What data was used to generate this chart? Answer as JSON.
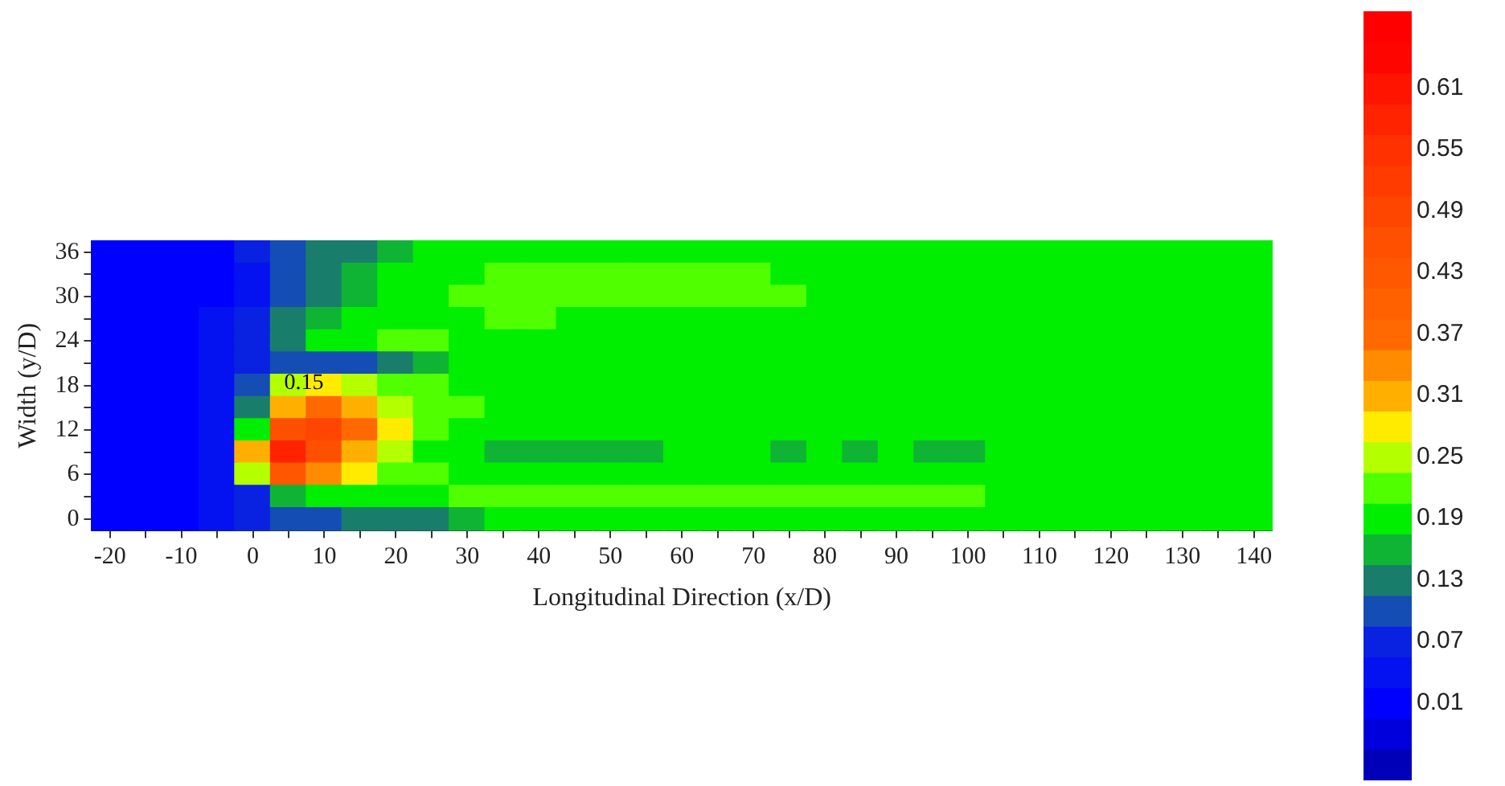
{
  "chart_data": {
    "type": "heatmap",
    "xlabel": "Longitudinal Direction (x/D)",
    "ylabel": "Width (y/D)",
    "categories": [
      "-20",
      null,
      "-10",
      null,
      "0",
      null,
      "10",
      null,
      "20",
      null,
      "30",
      null,
      "40",
      null,
      "50",
      null,
      "60",
      null,
      "70",
      null,
      "80",
      null,
      "90",
      null,
      "100",
      null,
      "110",
      null,
      "120",
      null,
      "130",
      null,
      "140"
    ],
    "y_categories": [
      "36",
      null,
      "30",
      null,
      "24",
      null,
      "18",
      null,
      "12",
      null,
      "6",
      null,
      "0"
    ],
    "cells": [
      [
        0.01,
        0.01,
        0.01,
        0.01,
        0.07,
        0.1,
        0.13,
        0.13,
        0.16,
        0.19,
        0.19,
        0.19,
        0.19,
        0.19,
        0.19,
        0.19,
        0.19,
        0.19,
        0.19,
        0.19,
        0.19,
        0.19,
        0.19,
        0.19,
        0.19,
        0.19,
        0.19,
        0.19,
        0.19,
        0.19,
        0.19,
        0.19,
        0.19
      ],
      [
        0.01,
        0.01,
        0.01,
        0.01,
        0.04,
        0.1,
        0.13,
        0.16,
        0.19,
        0.19,
        0.19,
        0.22,
        0.22,
        0.22,
        0.22,
        0.22,
        0.22,
        0.22,
        0.22,
        0.19,
        0.19,
        0.19,
        0.19,
        0.19,
        0.19,
        0.19,
        0.19,
        0.19,
        0.19,
        0.19,
        0.19,
        0.19,
        0.19
      ],
      [
        0.01,
        0.01,
        0.01,
        0.01,
        0.04,
        0.1,
        0.13,
        0.16,
        0.19,
        0.19,
        0.22,
        0.22,
        0.22,
        0.22,
        0.22,
        0.22,
        0.22,
        0.22,
        0.22,
        0.22,
        0.19,
        0.19,
        0.19,
        0.19,
        0.19,
        0.19,
        0.19,
        0.19,
        0.19,
        0.19,
        0.19,
        0.19,
        0.19
      ],
      [
        0.01,
        0.01,
        0.01,
        0.04,
        0.07,
        0.13,
        0.16,
        0.19,
        0.19,
        0.19,
        0.19,
        0.22,
        0.22,
        0.19,
        0.19,
        0.19,
        0.19,
        0.19,
        0.19,
        0.19,
        0.19,
        0.19,
        0.19,
        0.19,
        0.19,
        0.19,
        0.19,
        0.19,
        0.19,
        0.19,
        0.19,
        0.19,
        0.19
      ],
      [
        0.01,
        0.01,
        0.01,
        0.04,
        0.07,
        0.13,
        0.19,
        0.19,
        0.22,
        0.22,
        0.19,
        0.19,
        0.19,
        0.19,
        0.19,
        0.19,
        0.19,
        0.19,
        0.19,
        0.19,
        0.19,
        0.19,
        0.19,
        0.19,
        0.19,
        0.19,
        0.19,
        0.19,
        0.19,
        0.19,
        0.19,
        0.19,
        0.19
      ],
      [
        0.01,
        0.01,
        0.01,
        0.04,
        0.07,
        0.1,
        0.1,
        0.1,
        0.13,
        0.16,
        0.19,
        0.19,
        0.19,
        0.19,
        0.19,
        0.19,
        0.19,
        0.19,
        0.19,
        0.19,
        0.19,
        0.19,
        0.19,
        0.19,
        0.19,
        0.19,
        0.19,
        0.19,
        0.19,
        0.19,
        0.19,
        0.19,
        0.19
      ],
      [
        0.01,
        0.01,
        0.01,
        0.04,
        0.1,
        0.25,
        0.28,
        0.25,
        0.22,
        0.22,
        0.19,
        0.19,
        0.19,
        0.19,
        0.19,
        0.19,
        0.19,
        0.19,
        0.19,
        0.19,
        0.19,
        0.19,
        0.19,
        0.19,
        0.19,
        0.19,
        0.19,
        0.19,
        0.19,
        0.19,
        0.19,
        0.19,
        0.19
      ],
      [
        0.01,
        0.01,
        0.01,
        0.04,
        0.13,
        0.31,
        0.37,
        0.31,
        0.25,
        0.22,
        0.22,
        0.19,
        0.19,
        0.19,
        0.19,
        0.19,
        0.19,
        0.19,
        0.19,
        0.19,
        0.19,
        0.19,
        0.19,
        0.19,
        0.19,
        0.19,
        0.19,
        0.19,
        0.19,
        0.19,
        0.19,
        0.19,
        0.19
      ],
      [
        0.01,
        0.01,
        0.01,
        0.04,
        0.19,
        0.46,
        0.49,
        0.37,
        0.28,
        0.22,
        0.19,
        0.19,
        0.19,
        0.19,
        0.19,
        0.19,
        0.19,
        0.19,
        0.19,
        0.19,
        0.19,
        0.19,
        0.19,
        0.19,
        0.19,
        0.19,
        0.19,
        0.19,
        0.19,
        0.19,
        0.19,
        0.19,
        0.19
      ],
      [
        0.01,
        0.01,
        0.01,
        0.04,
        0.31,
        0.58,
        0.46,
        0.31,
        0.25,
        0.19,
        0.19,
        0.16,
        0.16,
        0.16,
        0.16,
        0.16,
        0.19,
        0.19,
        0.19,
        0.16,
        0.19,
        0.16,
        0.19,
        0.16,
        0.16,
        0.19,
        0.19,
        0.19,
        0.19,
        0.19,
        0.19,
        0.19,
        0.19
      ],
      [
        0.01,
        0.01,
        0.01,
        0.04,
        0.25,
        0.43,
        0.34,
        0.28,
        0.22,
        0.22,
        0.19,
        0.19,
        0.19,
        0.19,
        0.19,
        0.19,
        0.19,
        0.19,
        0.19,
        0.19,
        0.19,
        0.19,
        0.19,
        0.19,
        0.19,
        0.19,
        0.19,
        0.19,
        0.19,
        0.19,
        0.19,
        0.19,
        0.19
      ],
      [
        0.01,
        0.01,
        0.01,
        0.04,
        0.07,
        0.16,
        0.19,
        0.19,
        0.19,
        0.19,
        0.22,
        0.22,
        0.22,
        0.22,
        0.22,
        0.22,
        0.22,
        0.22,
        0.22,
        0.22,
        0.22,
        0.22,
        0.22,
        0.22,
        0.22,
        0.19,
        0.19,
        0.19,
        0.19,
        0.19,
        0.19,
        0.19,
        0.19
      ],
      [
        0.01,
        0.01,
        0.01,
        0.04,
        0.07,
        0.1,
        0.1,
        0.13,
        0.13,
        0.13,
        0.16,
        0.19,
        0.19,
        0.19,
        0.19,
        0.19,
        0.19,
        0.19,
        0.19,
        0.19,
        0.19,
        0.19,
        0.19,
        0.19,
        0.19,
        0.19,
        0.19,
        0.19,
        0.19,
        0.19,
        0.19,
        0.19,
        0.19
      ]
    ],
    "clim": [
      -0.065,
      0.685
    ],
    "cticks": [
      0.01,
      0.07,
      0.13,
      0.19,
      0.25,
      0.31,
      0.37,
      0.43,
      0.49,
      0.55,
      0.61
    ],
    "annotations": [
      "0.15"
    ]
  }
}
